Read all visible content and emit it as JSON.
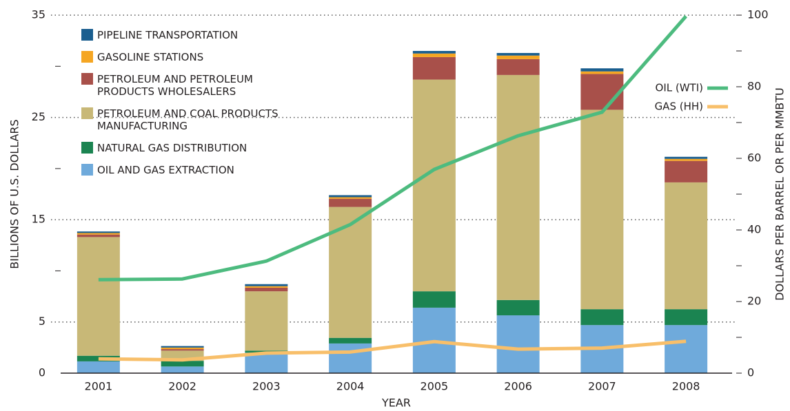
{
  "chart_data": {
    "type": "bar",
    "stacked": true,
    "x_label": "YEAR",
    "y_label": "BILLIONS OF U.S. DOLLARS",
    "y2_label": "DOLLARS PER BARREL OR PER MMBTU",
    "categories": [
      "2001",
      "2002",
      "2003",
      "2004",
      "2005",
      "2006",
      "2007",
      "2008"
    ],
    "ylim": [
      0,
      35
    ],
    "yticks": [
      0,
      5,
      15,
      25,
      35
    ],
    "minor_yticks": [
      10,
      20,
      30
    ],
    "y2lim": [
      0,
      100
    ],
    "y2ticks": [
      0,
      20,
      40,
      60,
      80,
      100
    ],
    "minor_y2ticks": [
      10,
      30,
      50,
      70,
      90
    ],
    "grid": true,
    "legend": "top-left",
    "line_legend": "right",
    "series": [
      {
        "name": "OIL AND GAS EXTRACTION",
        "color": "#6faadb",
        "values": [
          1.15,
          0.65,
          2.0,
          2.9,
          6.4,
          5.65,
          4.7,
          4.7
        ]
      },
      {
        "name": "NATURAL GAS DISTRIBUTION",
        "color": "#1b8451",
        "values": [
          0.55,
          0.55,
          0.2,
          0.55,
          1.6,
          1.5,
          1.55,
          1.55
        ]
      },
      {
        "name": "PETROLEUM AND COAL PRODUCTS MANUFACTURING",
        "color": "#c8b877",
        "values": [
          11.6,
          1.0,
          5.8,
          12.8,
          20.7,
          22.0,
          19.5,
          12.4
        ]
      },
      {
        "name": "PETROLEUM AND PETROLEUM PRODUCTS WHOLESALERS",
        "color": "#a8504a",
        "values": [
          0.25,
          0.15,
          0.35,
          0.8,
          2.2,
          1.55,
          3.5,
          2.1
        ]
      },
      {
        "name": "GASOLINE STATIONS",
        "color": "#f5a623",
        "values": [
          0.15,
          0.15,
          0.15,
          0.15,
          0.35,
          0.35,
          0.25,
          0.2
        ]
      },
      {
        "name": "PIPELINE TRANSPORTATION",
        "color": "#1a5e8f",
        "values": [
          0.15,
          0.15,
          0.2,
          0.2,
          0.25,
          0.25,
          0.3,
          0.2
        ]
      },
      {
        "name": "OIL (WTI)",
        "type": "line",
        "axis": "y2",
        "color": "#4dbb7f",
        "values": [
          26.1,
          26.3,
          31.3,
          41.5,
          56.9,
          66.3,
          72.9,
          99.7
        ]
      },
      {
        "name": "GAS (HH)",
        "type": "line",
        "axis": "y2",
        "color": "#f8bf6a",
        "values": [
          4.0,
          3.7,
          5.6,
          5.9,
          8.8,
          6.7,
          7.0,
          8.9
        ]
      }
    ]
  }
}
